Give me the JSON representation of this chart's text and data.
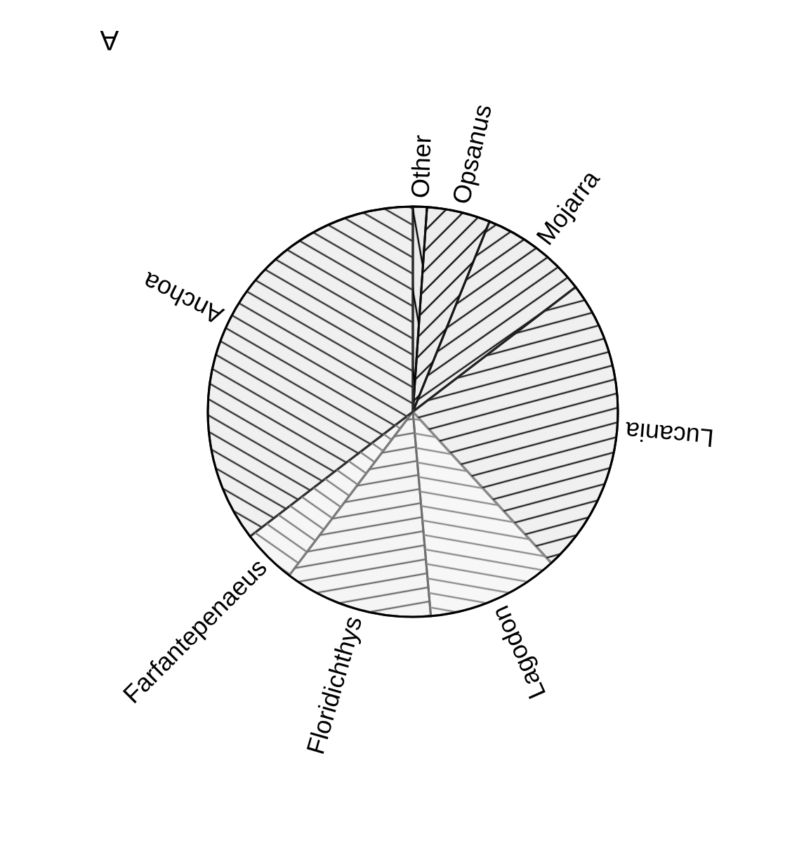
{
  "chart_data": {
    "type": "pie",
    "annotations": [
      "A"
    ],
    "categories": [
      "Other",
      "Opsanus",
      "Mojarra",
      "Lucania",
      "Lagodon",
      "Floridichthys",
      "Farfantepenaeus",
      "Anchoa"
    ],
    "values": [
      1.1,
      5,
      8.5,
      23.6,
      10.4,
      11.7,
      4.3,
      35.4
    ],
    "colors": [
      "#000000",
      "#0c0c0c",
      "#181818",
      "#242424",
      "#8c8c8c",
      "#6e6e6e",
      "#7d7d7d",
      "#303030"
    ]
  }
}
